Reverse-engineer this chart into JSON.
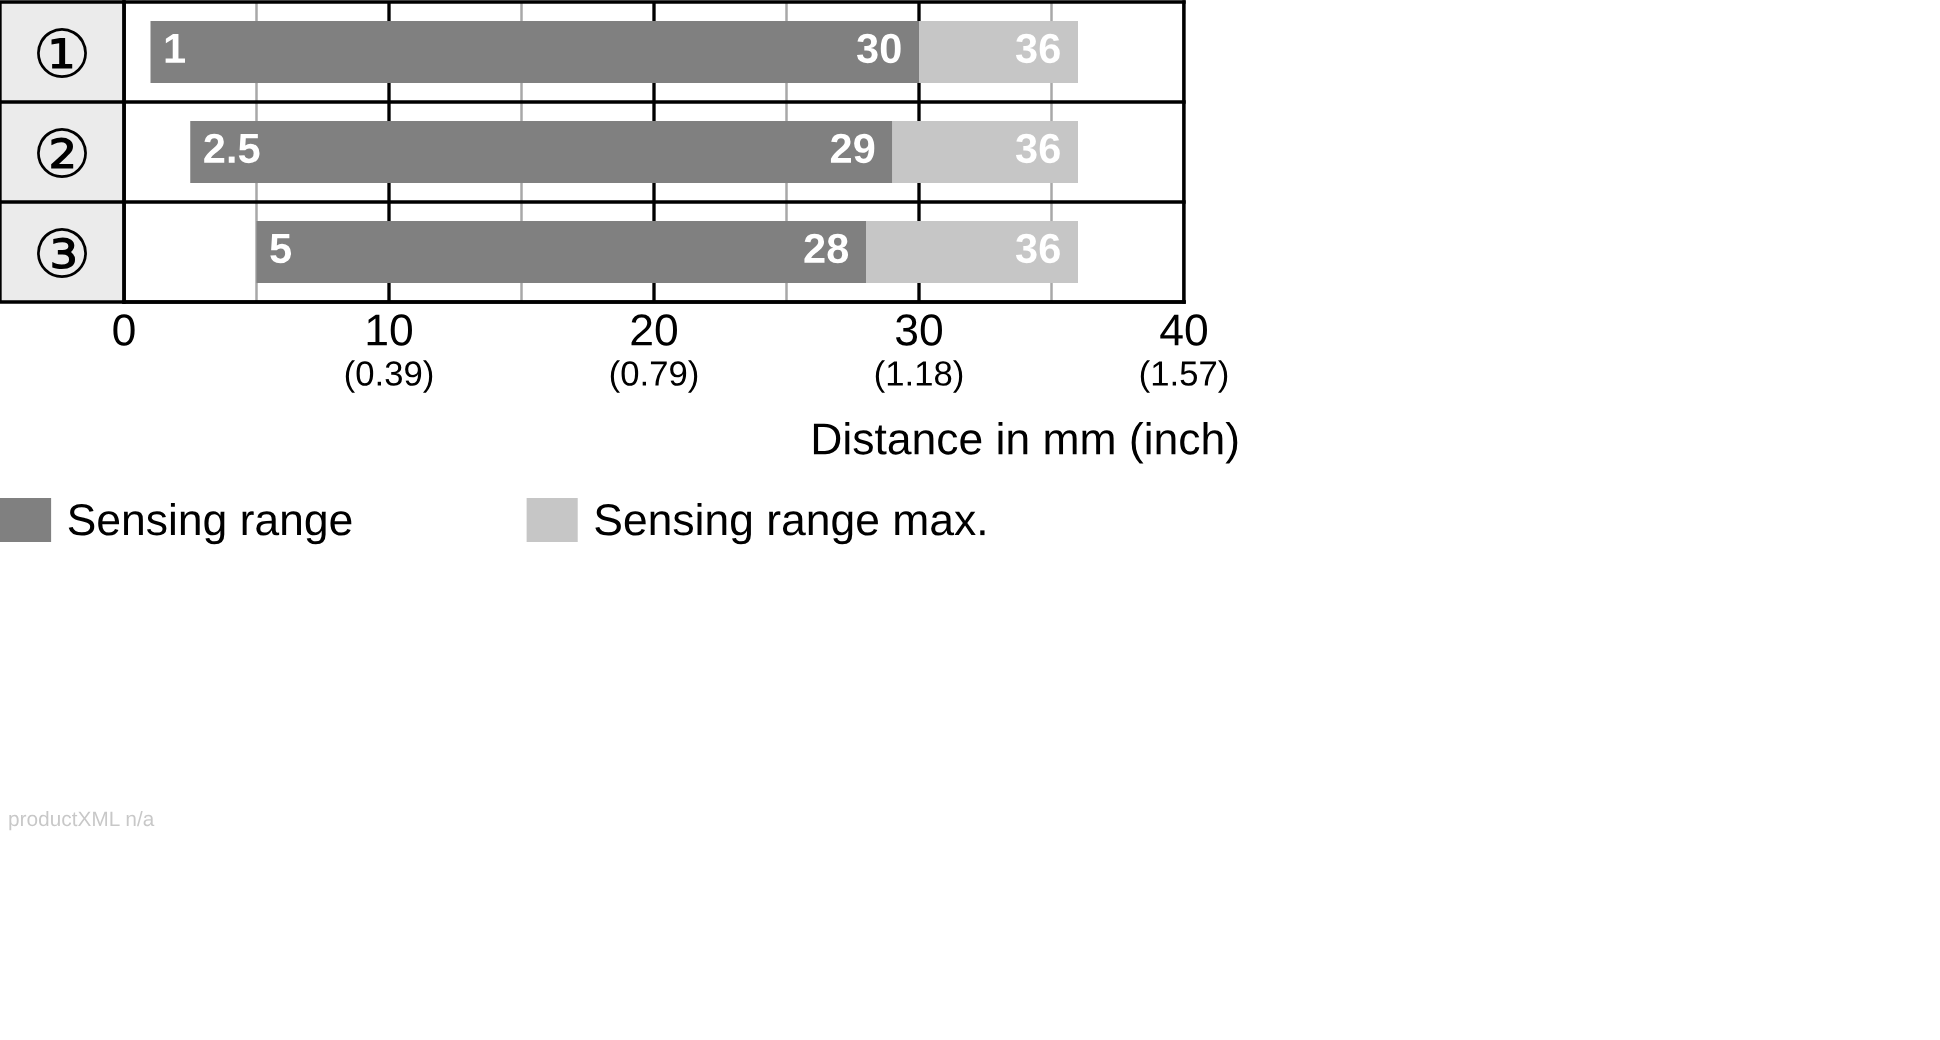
{
  "chart_data": {
    "type": "bar",
    "orientation": "horizontal",
    "categories": [
      "①",
      "②",
      "③"
    ],
    "series": [
      {
        "name": "Sensing range",
        "color": "#808080",
        "base": [
          1,
          2.5,
          5
        ],
        "values": [
          29,
          26.5,
          23
        ]
      },
      {
        "name": "Sensing range max.",
        "color": "#c6c6c6",
        "base": [
          30,
          29,
          28
        ],
        "values": [
          6,
          7,
          8
        ]
      }
    ],
    "xlim": [
      0,
      40
    ],
    "xticks": [
      0,
      {
        "value": 5,
        "label": null
      },
      10,
      {
        "value": 15,
        "label": null
      },
      20,
      {
        "value": 25,
        "label": null
      },
      30,
      {
        "value": 35,
        "label": null
      },
      40
    ],
    "x2lim": [
      0,
      1.5748
    ],
    "x2ticks": [
      {
        "value": 0.3937,
        "label": "(0.39)"
      },
      {
        "value": 0.7874,
        "label": "(0.79)"
      },
      {
        "value": 1.1811,
        "label": "(1.18)"
      },
      {
        "value": 1.5748,
        "label": "(1.57)"
      }
    ],
    "xlabel": "Distance in mm (inch)",
    "grid": "x",
    "legend": "bottom",
    "annotations": [
      {
        "text": "1",
        "x": 1,
        "y": "①"
      },
      {
        "text": "30",
        "x": 30,
        "y": "①"
      },
      {
        "text": "36",
        "x": 36,
        "y": "①"
      },
      {
        "text": "2.5",
        "x": 2.5,
        "y": "②"
      },
      {
        "text": "29",
        "x": 29,
        "y": "②"
      },
      {
        "text": "36",
        "x": 36,
        "y": "②"
      },
      {
        "text": "5",
        "x": 5,
        "y": "③"
      },
      {
        "text": "28",
        "x": 28,
        "y": "③"
      },
      {
        "text": "36",
        "x": 36,
        "y": "③"
      },
      "productXML n/a"
    ]
  }
}
